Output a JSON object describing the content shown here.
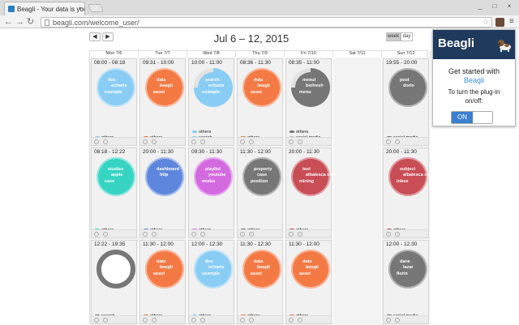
{
  "browser": {
    "tab_title": "Beagli - Your data is your",
    "tab_close": "×",
    "url": "beagli.com/welcome_user/",
    "back": "←",
    "forward": "→",
    "reload": "↻",
    "star": "☆",
    "menu": "≡",
    "win_min": "_",
    "win_max": "□",
    "win_close": "×"
  },
  "calendar": {
    "prev": "◀",
    "next": "▶",
    "title": "Jul 6 – 12, 2015",
    "views": [
      "week",
      "day"
    ],
    "active_view": "week",
    "days": [
      "Mon 7/6",
      "Tue 7/7",
      "Wed 7/8",
      "Thu 7/9",
      "Fri 7/10",
      "Sat 7/11",
      "Sun 7/12"
    ]
  },
  "colors": {
    "blue": "#89cdf4",
    "orange": "#f47a45",
    "gray": "#777777",
    "teal": "#36d4c3",
    "navy": "#5e86dc",
    "purple": "#d46ae0",
    "red": "#c84d55",
    "silver": "#bbbbbb"
  },
  "events": [
    {
      "day": 0,
      "row": 0,
      "time": "08:00 - 08:18",
      "color": "blue",
      "words": [
        "doc",
        "echarts",
        "example"
      ],
      "legend": [
        {
          "c": "blue",
          "t": "others"
        }
      ]
    },
    {
      "day": 1,
      "row": 0,
      "time": "09:31 - 10:00",
      "color": "orange",
      "words": [
        "data",
        "beagli",
        "asset"
      ],
      "legend": [
        {
          "c": "orange",
          "t": "others"
        }
      ]
    },
    {
      "day": 2,
      "row": 0,
      "time": "10:00 - 11:00",
      "color": "blue",
      "words": [
        "search",
        "echarts",
        "example"
      ],
      "partial": true,
      "legend": [
        {
          "c": "blue",
          "t": "others"
        },
        {
          "c": "blue",
          "t": "search"
        }
      ]
    },
    {
      "day": 3,
      "row": 0,
      "time": "08:36 - 11:30",
      "color": "orange",
      "words": [
        "data",
        "beagli",
        "asset"
      ],
      "legend": [
        {
          "c": "orange",
          "t": "others"
        }
      ]
    },
    {
      "day": 4,
      "row": 0,
      "time": "08:35 - 11:00",
      "color": "gray",
      "words": [
        "menul",
        "biofresh",
        "menu"
      ],
      "partial": true,
      "legend": [
        {
          "c": "gray",
          "t": "others"
        },
        {
          "c": "silver",
          "t": "social media"
        }
      ]
    },
    {
      "day": 6,
      "row": 0,
      "time": "19:55 - 20:00",
      "color": "gray",
      "words": [
        "post",
        "dorin",
        ""
      ],
      "legend": [
        {
          "c": "gray",
          "t": "social media"
        }
      ]
    },
    {
      "day": 0,
      "row": 1,
      "time": "08:18 - 12:22",
      "color": "teal",
      "words": [
        "studies",
        "apple",
        "case"
      ],
      "legend": [
        {
          "c": "teal",
          "t": "others"
        }
      ]
    },
    {
      "day": 1,
      "row": 1,
      "time": "20:00 - 11:30",
      "color": "navy",
      "words": [
        "dashboard",
        "http",
        ""
      ],
      "legend": [
        {
          "c": "navy",
          "t": "others"
        }
      ]
    },
    {
      "day": 2,
      "row": 1,
      "time": "09:30 - 11:30",
      "color": "purple",
      "words": [
        "playlist",
        "youtube",
        "nneka"
      ],
      "legend": [
        {
          "c": "purple",
          "t": "others"
        }
      ]
    },
    {
      "day": 3,
      "row": 1,
      "time": "11:30 - 12:00",
      "color": "gray",
      "words": [
        "property",
        "case",
        "position"
      ],
      "legend": [
        {
          "c": "gray",
          "t": "others"
        }
      ]
    },
    {
      "day": 4,
      "row": 1,
      "time": "20:00 - 11:30",
      "color": "red",
      "words": [
        "text",
        "albalesca cms",
        "mining"
      ],
      "legend": [
        {
          "c": "red",
          "t": "others"
        }
      ]
    },
    {
      "day": 6,
      "row": 1,
      "time": "20:00 - 11:30",
      "color": "red",
      "words": [
        "subject",
        "albalesca cms",
        "inbox"
      ],
      "legend": [
        {
          "c": "red",
          "t": "others"
        }
      ]
    },
    {
      "day": 0,
      "row": 2,
      "time": "12:22 - 19:35",
      "color": "gray",
      "words": [
        "",
        "",
        ""
      ],
      "hollow": true,
      "legend": [
        {
          "c": "gray",
          "t": "search"
        }
      ]
    },
    {
      "day": 1,
      "row": 2,
      "time": "11:30 - 12:00",
      "color": "orange",
      "words": [
        "data",
        "beagli",
        "asset"
      ],
      "legend": [
        {
          "c": "orange",
          "t": "others"
        }
      ]
    },
    {
      "day": 2,
      "row": 2,
      "time": "12:00 - 12:30",
      "color": "blue",
      "words": [
        "doc",
        "echarts",
        "example"
      ],
      "legend": [
        {
          "c": "blue",
          "t": "others"
        }
      ]
    },
    {
      "day": 3,
      "row": 2,
      "time": "11:30 - 12:30",
      "color": "orange",
      "words": [
        "data",
        "beagli",
        "asset"
      ],
      "legend": [
        {
          "c": "orange",
          "t": "others"
        }
      ]
    },
    {
      "day": 4,
      "row": 2,
      "time": "11:30 - 12:00",
      "color": "orange",
      "words": [
        "data",
        "beagli",
        "asset"
      ],
      "legend": [
        {
          "c": "orange",
          "t": "others"
        }
      ]
    },
    {
      "day": 6,
      "row": 2,
      "time": "12:00 - 12:30",
      "color": "gray",
      "words": [
        "dane",
        "lazar",
        "florin"
      ],
      "legend": [
        {
          "c": "gray",
          "t": "social media"
        }
      ]
    }
  ],
  "popup": {
    "logo": "Beagli",
    "started": "Get started with",
    "brand": "Beagli",
    "prompt_line1": "To turn the plug-in",
    "prompt_line2": "on/off:",
    "toggle": "ON"
  }
}
